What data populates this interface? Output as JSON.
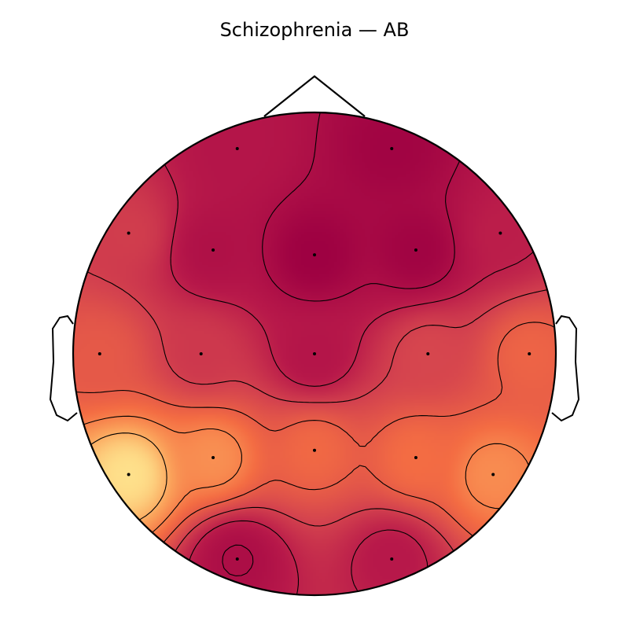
{
  "chart_data": {
    "type": "heatmap",
    "title": "Schizophrenia — AB",
    "colormap": "Spectral",
    "colors": {
      "lowest": "#9e0142",
      "low": "#b8194a",
      "mid_low": "#d5444e",
      "mid": "#f46d43",
      "mid_high": "#fba15a",
      "highest": "#fee08b"
    },
    "sensors": [
      {
        "x": -0.32,
        "y": 0.85,
        "value": 0.22
      },
      {
        "x": 0.32,
        "y": 0.85,
        "value": 0.05
      },
      {
        "x": -0.77,
        "y": 0.5,
        "value": 0.42
      },
      {
        "x": -0.42,
        "y": 0.43,
        "value": 0.18
      },
      {
        "x": 0.0,
        "y": 0.41,
        "value": 0.02
      },
      {
        "x": 0.42,
        "y": 0.43,
        "value": 0.05
      },
      {
        "x": 0.77,
        "y": 0.5,
        "value": 0.28
      },
      {
        "x": -0.89,
        "y": 0.0,
        "value": 0.55
      },
      {
        "x": -0.47,
        "y": 0.0,
        "value": 0.4
      },
      {
        "x": 0.0,
        "y": 0.0,
        "value": 0.22
      },
      {
        "x": 0.47,
        "y": 0.0,
        "value": 0.46
      },
      {
        "x": 0.89,
        "y": 0.0,
        "value": 0.6
      },
      {
        "x": -0.77,
        "y": -0.5,
        "value": 0.98
      },
      {
        "x": -0.42,
        "y": -0.43,
        "value": 0.75
      },
      {
        "x": 0.0,
        "y": -0.4,
        "value": 0.62
      },
      {
        "x": 0.42,
        "y": -0.43,
        "value": 0.64
      },
      {
        "x": 0.74,
        "y": -0.5,
        "value": 0.74
      },
      {
        "x": -0.32,
        "y": -0.85,
        "value": 0.15
      },
      {
        "x": 0.32,
        "y": -0.85,
        "value": 0.25
      }
    ],
    "contour_levels": 6,
    "legend": "none",
    "grid": false
  }
}
